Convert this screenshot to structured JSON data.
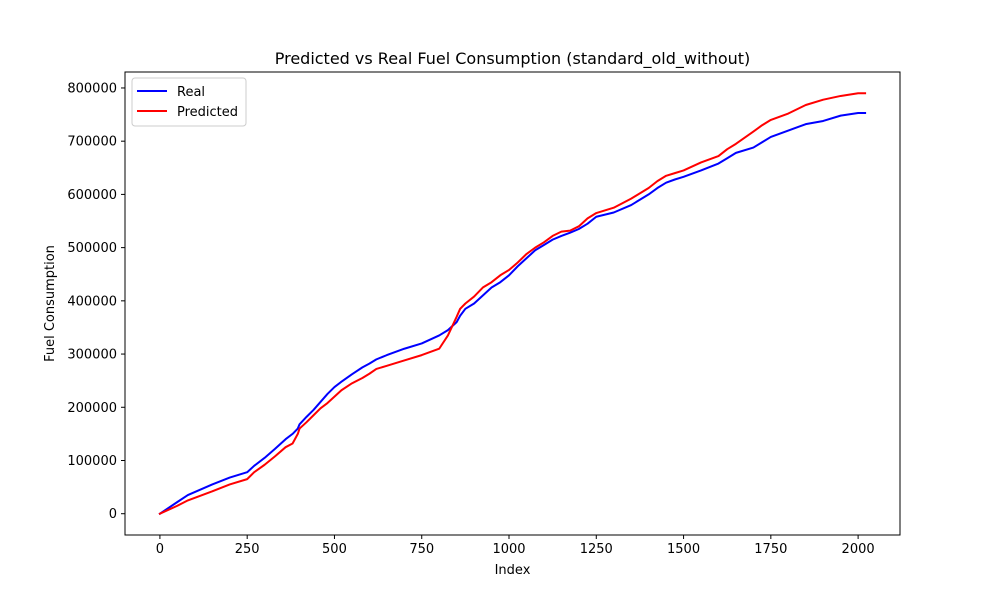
{
  "chart_data": {
    "type": "line",
    "title": "Predicted vs Real Fuel Consumption (standard_old_without)",
    "xlabel": "Index",
    "ylabel": "Fuel Consumption",
    "xlim": [
      -100,
      2120
    ],
    "ylim": [
      -40000,
      830000
    ],
    "xticks": [
      0,
      250,
      500,
      750,
      1000,
      1250,
      1500,
      1750,
      2000
    ],
    "yticks": [
      0,
      100000,
      200000,
      300000,
      400000,
      500000,
      600000,
      700000,
      800000
    ],
    "grid": false,
    "legend_position": "top-left",
    "series": [
      {
        "name": "Real",
        "color": "#0000ff",
        "x": [
          0,
          50,
          80,
          150,
          200,
          250,
          270,
          300,
          330,
          360,
          380,
          395,
          400,
          420,
          440,
          460,
          480,
          500,
          520,
          550,
          580,
          600,
          620,
          650,
          700,
          750,
          800,
          825,
          850,
          860,
          875,
          900,
          925,
          950,
          975,
          1000,
          1025,
          1050,
          1075,
          1100,
          1125,
          1150,
          1175,
          1200,
          1225,
          1250,
          1300,
          1350,
          1400,
          1425,
          1450,
          1475,
          1500,
          1550,
          1600,
          1625,
          1650,
          1700,
          1725,
          1750,
          1800,
          1850,
          1900,
          1950,
          2000,
          2020
        ],
        "values": [
          0,
          22000,
          35000,
          55000,
          68000,
          78000,
          90000,
          105000,
          122000,
          140000,
          150000,
          160000,
          168000,
          182000,
          195000,
          210000,
          225000,
          238000,
          248000,
          262000,
          275000,
          282000,
          290000,
          298000,
          310000,
          320000,
          335000,
          345000,
          360000,
          372000,
          385000,
          395000,
          410000,
          425000,
          435000,
          448000,
          465000,
          480000,
          495000,
          505000,
          515000,
          522000,
          528000,
          535000,
          545000,
          558000,
          566000,
          580000,
          600000,
          612000,
          622000,
          628000,
          633000,
          645000,
          658000,
          668000,
          678000,
          688000,
          698000,
          708000,
          720000,
          732000,
          738000,
          748000,
          753000,
          753000
        ]
      },
      {
        "name": "Predicted",
        "color": "#ff0000",
        "x": [
          0,
          50,
          80,
          150,
          200,
          250,
          270,
          300,
          330,
          360,
          380,
          395,
          400,
          420,
          440,
          460,
          480,
          500,
          520,
          550,
          580,
          600,
          620,
          650,
          700,
          750,
          800,
          825,
          850,
          860,
          875,
          900,
          925,
          950,
          975,
          1000,
          1025,
          1050,
          1075,
          1100,
          1125,
          1150,
          1175,
          1200,
          1225,
          1250,
          1300,
          1350,
          1400,
          1425,
          1450,
          1475,
          1500,
          1550,
          1600,
          1625,
          1650,
          1700,
          1725,
          1750,
          1800,
          1850,
          1900,
          1950,
          2000,
          2020
        ],
        "values": [
          0,
          15000,
          25000,
          42000,
          55000,
          65000,
          78000,
          92000,
          108000,
          125000,
          132000,
          150000,
          160000,
          172000,
          185000,
          198000,
          208000,
          220000,
          232000,
          245000,
          255000,
          263000,
          272000,
          278000,
          288000,
          298000,
          310000,
          335000,
          370000,
          385000,
          395000,
          408000,
          425000,
          435000,
          448000,
          458000,
          472000,
          488000,
          500000,
          510000,
          522000,
          530000,
          532000,
          540000,
          555000,
          565000,
          575000,
          592000,
          612000,
          625000,
          635000,
          640000,
          645000,
          660000,
          672000,
          685000,
          695000,
          718000,
          730000,
          740000,
          752000,
          768000,
          778000,
          785000,
          790000,
          790000
        ]
      }
    ]
  }
}
